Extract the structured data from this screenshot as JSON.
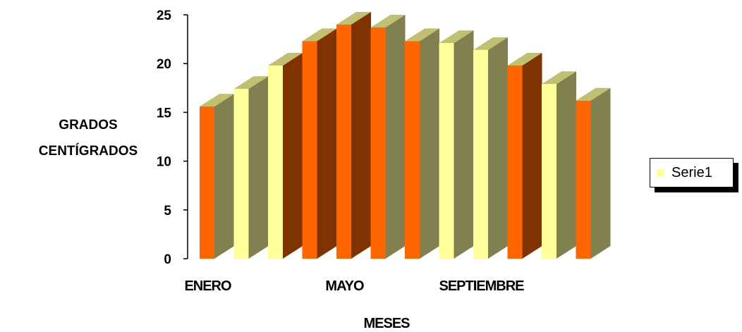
{
  "chart_data": {
    "type": "bar",
    "categories": [
      "ENERO",
      "",
      "",
      "",
      "MAYO",
      "",
      "",
      "",
      "SEPTIEMBRE",
      "",
      "",
      ""
    ],
    "series": [
      {
        "name": "Serie1",
        "values": [
          15.6,
          17.4,
          19.8,
          22.3,
          24.0,
          23.7,
          22.3,
          22.1,
          21.4,
          19.8,
          17.9,
          16.2
        ]
      }
    ],
    "xlabel": "MESES",
    "ylabel_lines": [
      "GRADOS",
      "CENTÍGRADOS"
    ],
    "ylim": [
      0,
      25
    ],
    "yticks": [
      "0",
      "5",
      "10",
      "15",
      "20",
      "25"
    ],
    "grid": false,
    "legend_position": "right",
    "bar_colors": [
      "#ff6600",
      "#ffff99",
      "#ffff99",
      "#ff6600",
      "#ff6600",
      "#ff6600",
      "#ff6600",
      "#ffff99",
      "#ffff99",
      "#ff6600",
      "#ffff99",
      "#ff6600"
    ],
    "side_colors": [
      "#808050",
      "#808050",
      "#803300",
      "#803300",
      "#803300",
      "#808050",
      "#808050",
      "#808050",
      "#808050",
      "#803300",
      "#808050",
      "#808050"
    ],
    "top_color": "#c0c070"
  }
}
